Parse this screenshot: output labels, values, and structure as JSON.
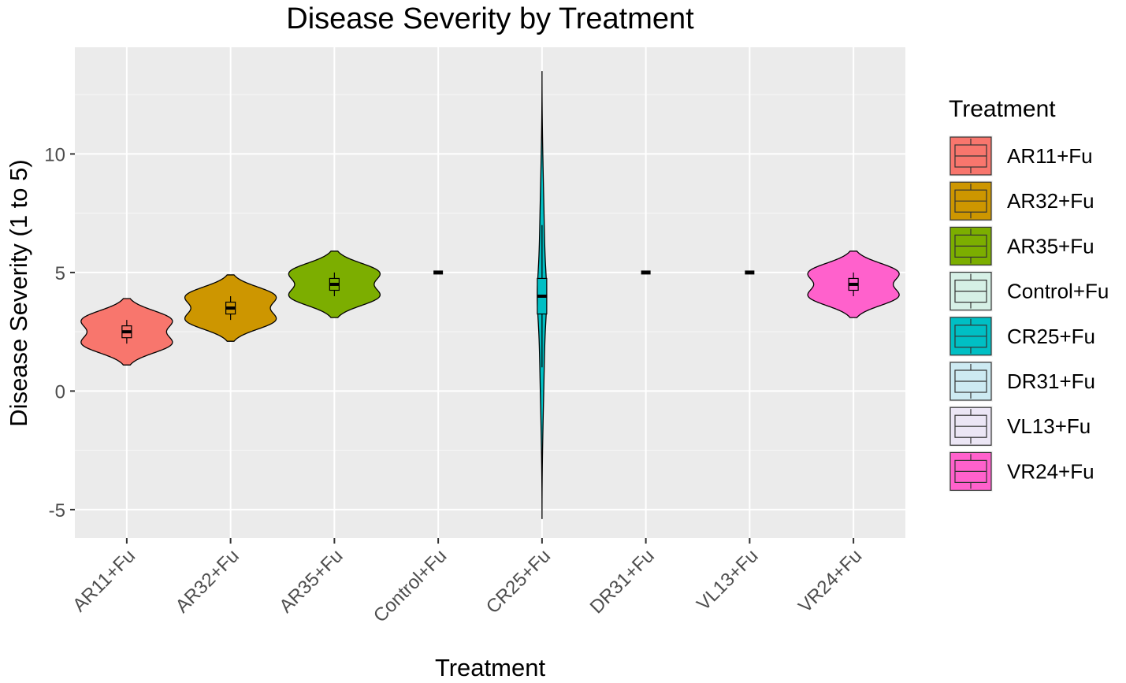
{
  "chart_data": {
    "type": "violin",
    "title": "Disease Severity by Treatment",
    "xlabel": "Treatment",
    "ylabel": "Disease Severity (1 to 5)",
    "ylim": [
      -6.2,
      14.5
    ],
    "yticks": [
      -5,
      0,
      5,
      10
    ],
    "ytick_labels": [
      "-5",
      "0",
      "5",
      "10"
    ],
    "grid": true,
    "legend_title": "Treatment",
    "legend_position": "right",
    "categories": [
      "AR11+Fu",
      "AR32+Fu",
      "AR35+Fu",
      "Control+Fu",
      "CR25+Fu",
      "DR31+Fu",
      "VL13+Fu",
      "VR24+Fu"
    ],
    "colors": [
      "#F8766D",
      "#CD9600",
      "#7CAE00",
      "#D6F0E6",
      "#00BFC4",
      "#CDEAF2",
      "#ECE6F5",
      "#FF61CC"
    ],
    "series": [
      {
        "name": "AR11+Fu",
        "values": [
          2,
          2,
          3,
          3
        ],
        "median": 2.5,
        "q1": 2.25,
        "q3": 2.75,
        "min": 2,
        "max": 3,
        "violin_range": [
          1.1,
          3.9
        ]
      },
      {
        "name": "AR32+Fu",
        "values": [
          3,
          3,
          4,
          4
        ],
        "median": 3.5,
        "q1": 3.25,
        "q3": 3.75,
        "min": 3,
        "max": 4,
        "violin_range": [
          2.1,
          4.9
        ]
      },
      {
        "name": "AR35+Fu",
        "values": [
          4,
          4,
          5,
          5
        ],
        "median": 4.5,
        "q1": 4.25,
        "q3": 4.75,
        "min": 4,
        "max": 5,
        "violin_range": [
          3.1,
          5.9
        ]
      },
      {
        "name": "Control+Fu",
        "values": [
          5,
          5,
          5,
          5
        ],
        "median": 5,
        "q1": 5,
        "q3": 5,
        "min": 5,
        "max": 5,
        "violin_range": [
          5,
          5
        ]
      },
      {
        "name": "CR25+Fu",
        "values": [
          1,
          4,
          4,
          7
        ],
        "median": 4,
        "q1": 3.25,
        "q3": 4.75,
        "min": 1,
        "max": 7,
        "violin_range": [
          -5.4,
          13.5
        ]
      },
      {
        "name": "DR31+Fu",
        "values": [
          5,
          5,
          5,
          5
        ],
        "median": 5,
        "q1": 5,
        "q3": 5,
        "min": 5,
        "max": 5,
        "violin_range": [
          5,
          5
        ]
      },
      {
        "name": "VL13+Fu",
        "values": [
          5,
          5,
          5,
          5
        ],
        "median": 5,
        "q1": 5,
        "q3": 5,
        "min": 5,
        "max": 5,
        "violin_range": [
          5,
          5
        ]
      },
      {
        "name": "VR24+Fu",
        "values": [
          4,
          4,
          5,
          5
        ],
        "median": 4.5,
        "q1": 4.25,
        "q3": 4.75,
        "min": 4,
        "max": 5,
        "violin_range": [
          3.1,
          5.9
        ]
      }
    ]
  }
}
